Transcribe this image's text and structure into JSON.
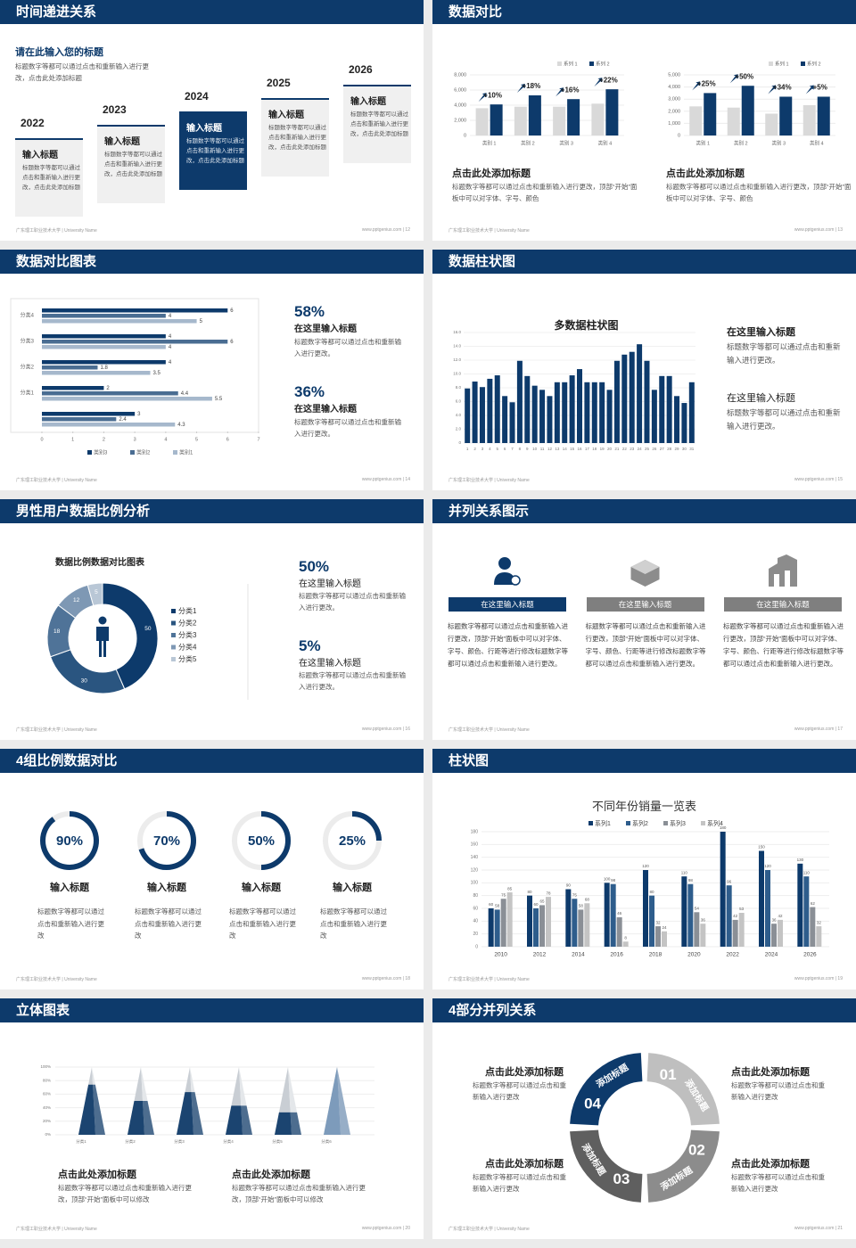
{
  "footer_left": "广东理工职业技术大学 | University Name",
  "slides": [
    {
      "type": "timeline",
      "title": "时间递进关系",
      "heading": "请在此输入您的标题",
      "text": "标题数字等都可以通过点击和重新输入进行更改，点击此处添加标题",
      "steps": [
        {
          "year": "2022",
          "title": "输入标题",
          "text": "标题数字等都可以通过点击和重新输入进行更改，点击此处添加标题",
          "dark": false
        },
        {
          "year": "2023",
          "title": "输入标题",
          "text": "标题数字等都可以通过点击和重新输入进行更改，点击此处添加标题",
          "dark": false
        },
        {
          "year": "2024",
          "title": "输入标题",
          "text": "标题数字等都可以通过点击和重新输入进行更改，点击此处添加标题",
          "dark": true
        },
        {
          "year": "2025",
          "title": "输入标题",
          "text": "标题数字等都可以通过点击和重新输入进行更改，点击此处添加标题",
          "dark": false
        },
        {
          "year": "2026",
          "title": "输入标题",
          "text": "标题数字等都可以通过点击和重新输入进行更改，点击此处添加标题",
          "dark": false
        }
      ],
      "footer": "www.pptgenius.com | 12"
    },
    {
      "type": "compare",
      "title": "数据对比",
      "charts": [
        {
          "type": "bar",
          "categories": [
            "类别 1",
            "类别 2",
            "类别 3",
            "类别 4"
          ],
          "series": [
            {
              "name": "系列 1",
              "color": "#d9d9d9",
              "values": [
                3600,
                3800,
                3800,
                4200
              ]
            },
            {
              "name": "系列 2",
              "color": "#0d3a6b",
              "values": [
                4100,
                5300,
                4800,
                6100
              ]
            }
          ],
          "ylim": [
            0,
            8000
          ],
          "yticks": [
            0,
            {
              "value": 2000,
              "label": "2,000"
            },
            {
              "value": 4000,
              "label": "4,000"
            },
            {
              "value": 6000,
              "label": "6,000"
            },
            {
              "value": 8000,
              "label": "8,000"
            }
          ],
          "annotations": [
            "+10%",
            "+18%",
            "+16%",
            "+22%"
          ],
          "caption_title": "点击此处添加标题",
          "caption": "标题数字等都可以通过点击和重新输入进行更改，顶部“开始”面板中可以对字体、字号、颜色"
        },
        {
          "type": "bar",
          "categories": [
            "类别 1",
            "类别 2",
            "类别 3",
            "类别 4"
          ],
          "series": [
            {
              "name": "系列 1",
              "color": "#d9d9d9",
              "values": [
                2400,
                2300,
                1800,
                2500
              ]
            },
            {
              "name": "系列 2",
              "color": "#0d3a6b",
              "values": [
                3500,
                4100,
                3200,
                3200
              ]
            }
          ],
          "ylim": [
            0,
            5000
          ],
          "yticks": [
            0,
            {
              "value": 1000,
              "label": "1,000"
            },
            {
              "value": 2000,
              "label": "2,000"
            },
            {
              "value": 3000,
              "label": "3,000"
            },
            {
              "value": 4000,
              "label": "4,000"
            },
            {
              "value": 5000,
              "label": "5,000"
            }
          ],
          "annotations": [
            "+25%",
            "+50%",
            "+34%",
            "+5%"
          ],
          "caption_title": "点击此处添加标题",
          "caption": "标题数字等都可以通过点击和重新输入进行更改，顶部“开始”面板中可以对字体、字号、颜色"
        }
      ],
      "footer": "www.pptgenius.com | 13"
    },
    {
      "type": "hbar",
      "title": "数据对比图表",
      "chart": {
        "type": "bar",
        "orientation": "horizontal",
        "categories": [
          null,
          "分类1",
          "分类2",
          "分类3",
          "分类4"
        ],
        "series": [
          {
            "name": "类别3",
            "color": "#0d3a6b",
            "values": [
              3,
              2,
              4,
              4,
              6
            ]
          },
          {
            "name": "类别2",
            "color": "#4a6d92",
            "values": [
              2.4,
              4.4,
              1.8,
              6,
              4
            ]
          },
          {
            "name": "类别1",
            "color": "#a6b8cc",
            "values": [
              4.3,
              5.5,
              3.5,
              4,
              5
            ]
          }
        ],
        "xlim": [
          0,
          7
        ],
        "xticks": [
          0,
          1,
          2,
          3,
          4,
          5,
          6,
          7
        ]
      },
      "items": [
        {
          "value": "58%",
          "title": "在这里输入标题",
          "text": "标题数字等都可以通过点击和重新输入进行更改。"
        },
        {
          "value": "36%",
          "title": "在这里输入标题",
          "text": "标题数字等都可以通过点击和重新输入进行更改。"
        }
      ],
      "footer": "www.pptgenius.com | 14"
    },
    {
      "type": "vbar",
      "title": "数据柱状图",
      "chart": {
        "type": "bar",
        "title": "多数据柱状图",
        "color": "#0d3a6b",
        "categories": [
          "1",
          "2",
          "3",
          "4",
          "5",
          "6",
          "7",
          "8",
          "9",
          "10",
          "11",
          "12",
          "13",
          "14",
          "15",
          "16",
          "17",
          "18",
          "19",
          "20",
          "21",
          "22",
          "23",
          "24",
          "25",
          "26",
          "27",
          "28",
          "29",
          "30",
          "31"
        ],
        "values": [
          7.9,
          8.9,
          8.1,
          9.3,
          9.8,
          6.8,
          5.9,
          11.9,
          9.7,
          8.3,
          7.7,
          6.8,
          8.8,
          8.8,
          9.8,
          10.7,
          8.8,
          8.8,
          8.8,
          7.7,
          11.9,
          12.8,
          13.2,
          14.3,
          11.9,
          7.7,
          9.7,
          9.7,
          6.8,
          5.8,
          8.8
        ],
        "ylim": [
          0,
          16
        ],
        "yticks": [
          0,
          {
            "value": 2,
            "label": "2.0"
          },
          {
            "value": 4,
            "label": "4.0"
          },
          {
            "value": 6,
            "label": "6.0"
          },
          {
            "value": 8,
            "label": "8.0"
          },
          {
            "value": 10,
            "label": "10.0"
          },
          {
            "value": 12,
            "label": "12.0"
          },
          {
            "value": 14,
            "label": "14.0"
          },
          {
            "value": 16,
            "label": "16.0"
          }
        ]
      },
      "items": [
        {
          "title": "在这里输入标题",
          "text": "标题数字等都可以通过点击和重新输入进行更改。"
        },
        {
          "title": "在这里输入标题",
          "text": "标题数字等都可以通过点击和重新输入进行更改。"
        }
      ],
      "footer": "www.pptgenius.com | 15"
    },
    {
      "type": "donut",
      "title": "男性用户数据比例分析",
      "chart": {
        "type": "pie",
        "title": "数据比例数据对比图表",
        "categories": [
          "分类1",
          "分类2",
          "分类3",
          "分类4",
          "分类5"
        ],
        "values": [
          50,
          30,
          18,
          12,
          5
        ],
        "colors": [
          "#0d3a6b",
          "#2a5580",
          "#4f7398",
          "#7e98b4",
          "#b9c7d6"
        ]
      },
      "items": [
        {
          "value": "50%",
          "title": "在这里输入标题",
          "text": "标题数字等都可以通过点击和重新输入进行更改。"
        },
        {
          "value": "5%",
          "title": "在这里输入标题",
          "text": "标题数字等都可以通过点击和重新输入进行更改。"
        }
      ],
      "footer": "www.pptgenius.com | 16"
    },
    {
      "type": "columns",
      "title": "并列关系图示",
      "columns": [
        {
          "title": "在这里输入标题",
          "dark": true,
          "text": "标题数字等都可以通过点击和重新输入进行更改，顶部“开始”面板中可以对字体、字号、颜色、行距等进行修改标题数字等都可以通过点击和重新输入进行更改。"
        },
        {
          "title": "在这里输入标题",
          "dark": false,
          "text": "标题数字等都可以通过点击和重新输入进行更改，顶部“开始”面板中可以对字体、字号、颜色、行距等进行修改标题数字等都可以通过点击和重新输入进行更改。"
        },
        {
          "title": "在这里输入标题",
          "dark": false,
          "text": "标题数字等都可以通过点击和重新输入进行更改，顶部“开始”面板中可以对字体、字号、颜色、行距等进行修改标题数字等都可以通过点击和重新输入进行更改。"
        }
      ],
      "footer": "www.pptgenius.com | 17"
    },
    {
      "type": "rings",
      "title": "4组比例数据对比",
      "chart": {
        "type": "ring",
        "values": [
          90,
          70,
          50,
          25
        ],
        "value_labels": [
          "90%",
          "70%",
          "50%",
          "25%"
        ],
        "color": "#0d3a6b"
      },
      "items": [
        {
          "title": "输入标题",
          "text": "标题数字等都可以通过点击和重新输入进行更改"
        },
        {
          "title": "输入标题",
          "text": "标题数字等都可以通过点击和重新输入进行更改"
        },
        {
          "title": "输入标题",
          "text": "标题数字等都可以通过点击和重新输入进行更改"
        },
        {
          "title": "输入标题",
          "text": "标题数字等都可以通过点击和重新输入进行更改"
        }
      ],
      "footer": "www.pptgenius.com | 18"
    },
    {
      "type": "grouped",
      "title": "柱状图",
      "chart": {
        "type": "bar",
        "title": "不同年份销量一览表",
        "categories": [
          "2010",
          "2012",
          "2014",
          "2016",
          "2018",
          "2020",
          "2022",
          "2024",
          "2026"
        ],
        "series": [
          {
            "name": "系列1",
            "color": "#0d3a6b",
            "values": [
              60,
              80,
              90,
              100,
              120,
              110,
              180,
              150,
              130
            ]
          },
          {
            "name": "系列2",
            "color": "#2e5d8c",
            "values": [
              58,
              60,
              75,
              98,
              80,
              98,
              96,
              120,
              110
            ]
          },
          {
            "name": "系列3",
            "color": "#8a8f96",
            "values": [
              75,
              65,
              58,
              46,
              32,
              54,
              42,
              36,
              62
            ]
          },
          {
            "name": "系列4",
            "color": "#c4c4c4",
            "values": [
              85,
              78,
              68,
              8,
              24,
              36,
              53,
              42,
              32
            ]
          }
        ],
        "ylim": [
          0,
          180
        ],
        "yticks": [
          0,
          20,
          40,
          60,
          80,
          100,
          120,
          140,
          160,
          180
        ]
      },
      "footer": "www.pptgenius.com | 19"
    },
    {
      "type": "pyramid",
      "title": "立体图表",
      "chart": {
        "type": "pyramid",
        "categories": [
          "分类1",
          "分类2",
          "分类3",
          "分类4",
          "分类5",
          "分类6"
        ],
        "values": [
          74,
          50,
          63,
          43,
          33,
          100
        ],
        "colors": [
          "#1b4470",
          "#1b4470",
          "#1b4470",
          "#1b4470",
          "#1b4470",
          "#7d9bbb"
        ],
        "ylim": [
          0,
          100
        ],
        "yticks": [
          {
            "value": 0,
            "label": "0%"
          },
          {
            "value": 20,
            "label": "20%"
          },
          {
            "value": 40,
            "label": "40%"
          },
          {
            "value": 60,
            "label": "60%"
          },
          {
            "value": 80,
            "label": "80%"
          },
          {
            "value": 100,
            "label": "100%"
          }
        ]
      },
      "items": [
        {
          "title": "点击此处添加标题",
          "text": "标题数字等都可以通过点击和重新输入进行更改，顶部“开始”面板中可以修改"
        },
        {
          "title": "点击此处添加标题",
          "text": "标题数字等都可以通过点击和重新输入进行更改，顶部“开始”面板中可以修改"
        }
      ],
      "footer": "www.pptgenius.com | 20"
    },
    {
      "type": "cycle",
      "title": "4部分并列关系",
      "segments": [
        {
          "number": "01",
          "label": "添加标题",
          "color": "#bfbfbf"
        },
        {
          "number": "02",
          "label": "添加标题",
          "color": "#8c8c8c"
        },
        {
          "number": "03",
          "label": "添加标题",
          "color": "#5f5f5f"
        },
        {
          "number": "04",
          "label": "添加标题",
          "color": "#0d3a6b"
        }
      ],
      "items": [
        {
          "title": "点击此处添加标题",
          "text": "标题数字等都可以通过点击和重新输入进行更改"
        },
        {
          "title": "点击此处添加标题",
          "text": "标题数字等都可以通过点击和重新输入进行更改"
        },
        {
          "title": "点击此处添加标题",
          "text": "标题数字等都可以通过点击和重新输入进行更改"
        },
        {
          "title": "点击此处添加标题",
          "text": "标题数字等都可以通过点击和重新输入进行更改"
        }
      ],
      "footer": "www.pptgenius.com | 21"
    }
  ]
}
